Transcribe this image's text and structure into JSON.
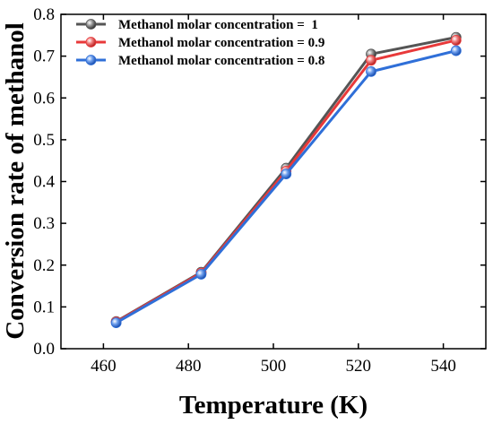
{
  "chart_data": {
    "type": "line",
    "xlabel": "Temperature (K)",
    "ylabel": "Conversion rate of methanol",
    "xlim": [
      450,
      550
    ],
    "ylim": [
      0.0,
      0.8
    ],
    "xticks": [
      "460",
      "480",
      "500",
      "520",
      "540"
    ],
    "yticks": [
      "0.0",
      "0.1",
      "0.2",
      "0.3",
      "0.4",
      "0.5",
      "0.6",
      "0.7",
      "0.8"
    ],
    "grid": false,
    "legend_position": "top-left",
    "x": [
      463,
      483,
      503,
      523,
      543
    ],
    "series": [
      {
        "name": "Methanol molar concentration =  1",
        "color": "#555555",
        "values": [
          0.065,
          0.183,
          0.432,
          0.705,
          0.745
        ]
      },
      {
        "name": "Methanol molar concentration = 0.9",
        "color": "#e8393a",
        "values": [
          0.064,
          0.181,
          0.425,
          0.69,
          0.738
        ]
      },
      {
        "name": "Methanol molar concentration = 0.8",
        "color": "#2f6fd8",
        "values": [
          0.062,
          0.178,
          0.418,
          0.663,
          0.713
        ]
      }
    ]
  }
}
